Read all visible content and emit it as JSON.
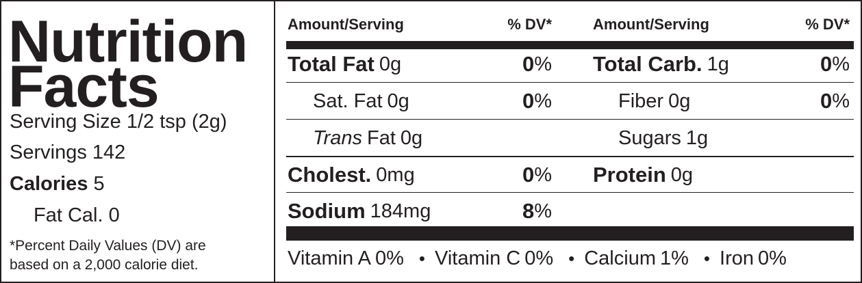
{
  "title": {
    "line1": "Nutrition",
    "line2": "Facts"
  },
  "serving_size": {
    "label": "Serving Size",
    "value": "1/2 tsp (2g)"
  },
  "servings": {
    "label": "Servings",
    "value": "142"
  },
  "calories": {
    "label": "Calories",
    "value": "5"
  },
  "fat_calories": {
    "label": "Fat Cal.",
    "value": "0"
  },
  "footnote": [
    "*Percent Daily Values (DV) are",
    "based on a 2,000 calorie diet."
  ],
  "columns": [
    {
      "amount_header": "Amount/Serving",
      "dv_header": "% DV*",
      "rows": [
        {
          "label": "Total Fat",
          "amount": "0g",
          "dv": "0",
          "dv_sign": "%",
          "style": "bold"
        },
        {
          "label": "Sat. Fat",
          "amount": "0g",
          "dv": "0",
          "dv_sign": "%",
          "style": "sub"
        },
        {
          "label_italic": "Trans",
          "label": "Fat",
          "amount": "0g",
          "style": "sub"
        },
        {
          "label": "Cholest.",
          "amount": "0mg",
          "dv": "0",
          "dv_sign": "%",
          "style": "bold"
        },
        {
          "label": "Sodium",
          "amount": "184mg",
          "dv": "8",
          "dv_sign": "%",
          "style": "bold"
        }
      ]
    },
    {
      "amount_header": "Amount/Serving",
      "dv_header": "% DV*",
      "rows": [
        {
          "label": "Total Carb.",
          "amount": "1g",
          "dv": "0",
          "dv_sign": "%",
          "style": "bold"
        },
        {
          "label": "Fiber",
          "amount": "0g",
          "dv": "0",
          "dv_sign": "%",
          "style": "sub"
        },
        {
          "label": "Sugars",
          "amount": "1g",
          "style": "sub"
        },
        {
          "label": "Protein",
          "amount": "0g",
          "style": "bold"
        }
      ]
    }
  ],
  "vitamins": [
    {
      "name": "Vitamin A",
      "value": "0%"
    },
    {
      "name": "Vitamin C",
      "value": "0%"
    },
    {
      "name": "Calcium",
      "value": "1%"
    },
    {
      "name": "Iron",
      "value": "0%"
    }
  ]
}
